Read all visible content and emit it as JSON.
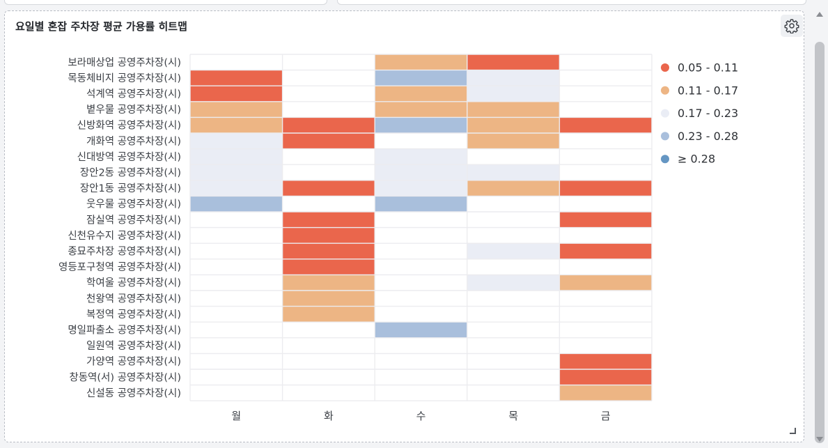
{
  "panel": {
    "title": "요일별 혼잡 주차장 평균 가용률 히트맵"
  },
  "colors": {
    "c1": "#ea664c",
    "c2": "#edb584",
    "c3": "#eaedf5",
    "c4": "#a9bfdc",
    "c5": "#6596c3"
  },
  "chart_data": {
    "type": "heatmap",
    "title": "요일별 혼잡 주차장 평균 가용률 히트맵",
    "x_categories": [
      "월",
      "화",
      "수",
      "목",
      "금"
    ],
    "y_categories": [
      "보라매상업 공영주차장(시)",
      "목동체비지 공영주차장(시)",
      "석계역 공영주차장(시)",
      "볕우물 공영주차장(시)",
      "신방화역 공영주차장(시)",
      "개화역 공영주차장(시)",
      "신대방역 공영주차장(시)",
      "장안2동 공영주차장(시)",
      "장안1동 공영주차장(시)",
      "웃우물 공영주차장(시)",
      "잠실역 공영주차장(시)",
      "신천유수지 공영주차장(시)",
      "종묘주차장 공영주차장(시)",
      "영등포구청역 공영주차장(시)",
      "학여울 공영주차장(시)",
      "천왕역 공영주차장(시)",
      "복정역 공영주차장(시)",
      "명일파출소 공영주차장(시)",
      "일원역 공영주차장(시)",
      "가양역 공영주차장(시)",
      "창동역(서) 공영주차장(시)",
      "신설동 공영주차장(시)"
    ],
    "legend": [
      {
        "label": "0.05 - 0.11",
        "color": "#ea664c"
      },
      {
        "label": "0.11 - 0.17",
        "color": "#edb584"
      },
      {
        "label": "0.17 - 0.23",
        "color": "#eaedf5"
      },
      {
        "label": "0.23 - 0.28",
        "color": "#a9bfdc"
      },
      {
        "label": "≥ 0.28",
        "color": "#6596c3"
      }
    ],
    "legend_position": "right",
    "cells": [
      [
        null,
        null,
        2,
        1,
        null
      ],
      [
        1,
        null,
        4,
        3,
        null
      ],
      [
        1,
        null,
        2,
        3,
        null
      ],
      [
        2,
        null,
        2,
        2,
        null
      ],
      [
        2,
        1,
        4,
        2,
        1
      ],
      [
        3,
        1,
        null,
        2,
        null
      ],
      [
        3,
        null,
        3,
        null,
        null
      ],
      [
        3,
        null,
        3,
        3,
        null
      ],
      [
        3,
        1,
        3,
        2,
        1
      ],
      [
        4,
        null,
        4,
        null,
        null
      ],
      [
        null,
        1,
        null,
        null,
        1
      ],
      [
        null,
        1,
        null,
        null,
        null
      ],
      [
        null,
        1,
        null,
        3,
        1
      ],
      [
        null,
        1,
        null,
        null,
        null
      ],
      [
        null,
        2,
        null,
        3,
        2
      ],
      [
        null,
        2,
        null,
        null,
        null
      ],
      [
        null,
        2,
        null,
        null,
        null
      ],
      [
        null,
        null,
        4,
        null,
        null
      ],
      [
        null,
        null,
        null,
        null,
        null
      ],
      [
        null,
        null,
        null,
        null,
        1
      ],
      [
        null,
        null,
        null,
        null,
        1
      ],
      [
        null,
        null,
        null,
        null,
        2
      ]
    ]
  }
}
